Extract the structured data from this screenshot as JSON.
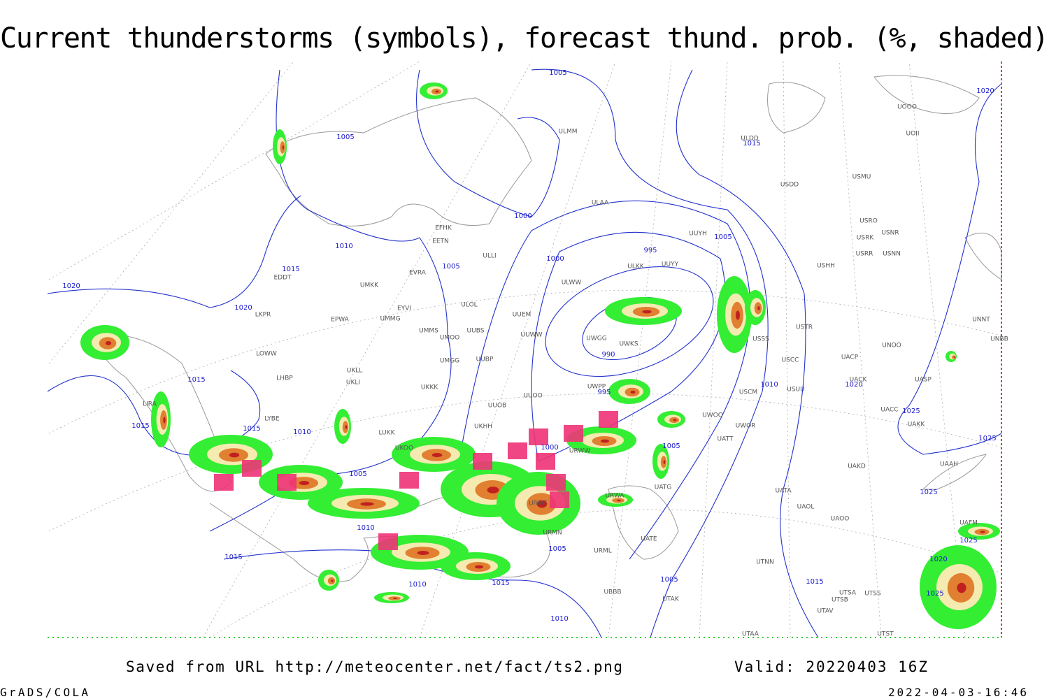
{
  "header": {
    "title": "Current thunderstorms (symbols), forecast thund. prob. (%, shaded)"
  },
  "map": {
    "isobar_labels": [
      1005,
      1005,
      1015,
      1000,
      1010,
      1015,
      1005,
      1005,
      995,
      1000,
      990,
      1020,
      1020,
      1015,
      1015,
      1015,
      1010,
      995,
      1010,
      1020,
      1025,
      1025,
      1005,
      1000,
      1005,
      1010,
      1015,
      1005,
      1010,
      1015,
      1005,
      1015,
      1010,
      1020,
      1025,
      1025,
      1020,
      1025
    ],
    "station_labels": [
      "ULMM",
      "ULAA",
      "EFHK",
      "EETN",
      "ULLI",
      "EVRA",
      "ULOL",
      "UMKK",
      "EYVI",
      "EPWA",
      "UMMG",
      "UMMS",
      "UMOO",
      "UUBS",
      "UMGG",
      "UUBP",
      "UUEM",
      "UUWW",
      "UUOO",
      "UUOB",
      "UKKK",
      "UKLL",
      "UKLI",
      "LKPR",
      "LOWW",
      "LHBP",
      "LIRA",
      "LYBE",
      "LUKK",
      "UKOO",
      "ULWW",
      "ULKK",
      "UUYY",
      "UUYH",
      "UWGG",
      "UWKS",
      "UWPP",
      "UWOO",
      "URWW",
      "URMT",
      "URMN",
      "UATG",
      "URWA",
      "UATT",
      "UWOR",
      "USCM",
      "USUU",
      "USCC",
      "USSS",
      "USTR",
      "UNOO",
      "UACK",
      "UACP",
      "UASP",
      "UACC",
      "UAKK",
      "UAKD",
      "UATA",
      "UAOL",
      "UAOO",
      "UTNN",
      "URML",
      "UATE",
      "UBBB",
      "UTAK",
      "UTAA",
      "UTSA",
      "UTSS",
      "UTSB",
      "UTAV",
      "UTST",
      "USDD",
      "USMU",
      "UOOO",
      "UOII",
      "ULDD",
      "USRO",
      "USRK",
      "USNR",
      "USRR",
      "USNN",
      "USHH",
      "UNNT",
      "UNBB",
      "UAAH",
      "UAFM",
      "EDDT",
      "UKHH"
    ]
  },
  "footer": {
    "saved": "Saved from URL http://meteocenter.net/fact/ts2.png",
    "valid": "Valid: 20220403 16Z",
    "credit": "GrADS/COLA",
    "timestamp": "2022-04-03-16:46"
  }
}
